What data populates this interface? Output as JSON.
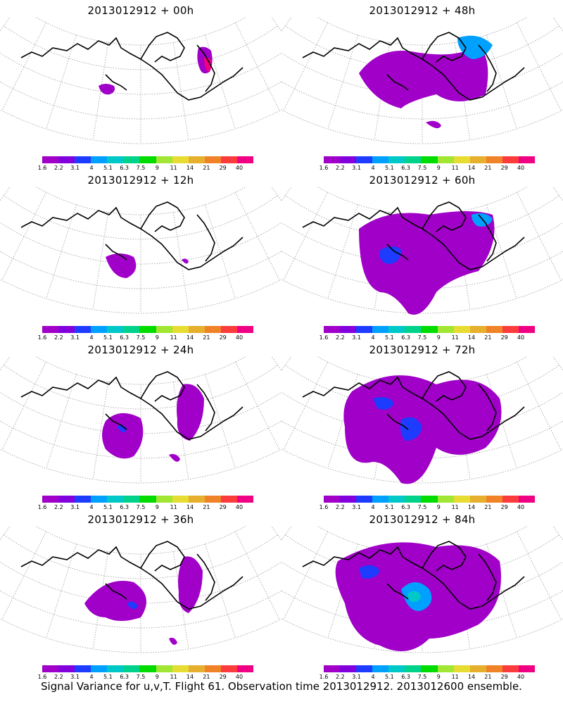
{
  "caption": "Signal Variance for u,v,T. Flight 61. Observation time 2013012912. 2013012600 ensemble.",
  "panels": [
    {
      "title": "2013012912 + 00h"
    },
    {
      "title": "2013012912 + 48h"
    },
    {
      "title": "2013012912 + 12h"
    },
    {
      "title": "2013012912 + 60h"
    },
    {
      "title": "2013012912 + 24h"
    },
    {
      "title": "2013012912 + 72h"
    },
    {
      "title": "2013012912 + 36h"
    },
    {
      "title": "2013012912 + 84h"
    }
  ],
  "colorbar": {
    "ticks": [
      "1.6",
      "2.2",
      "3.1",
      "4",
      "5.1",
      "6.3",
      "7.5",
      "9",
      "11",
      "14",
      "21",
      "29",
      "40"
    ],
    "colors": [
      "#a000c8",
      "#8200dc",
      "#1e3cff",
      "#00a0ff",
      "#00c8c8",
      "#00d28c",
      "#00dc00",
      "#a0e632",
      "#e6dc32",
      "#e6af2d",
      "#f08228",
      "#fa3c3c",
      "#f00082"
    ]
  }
}
